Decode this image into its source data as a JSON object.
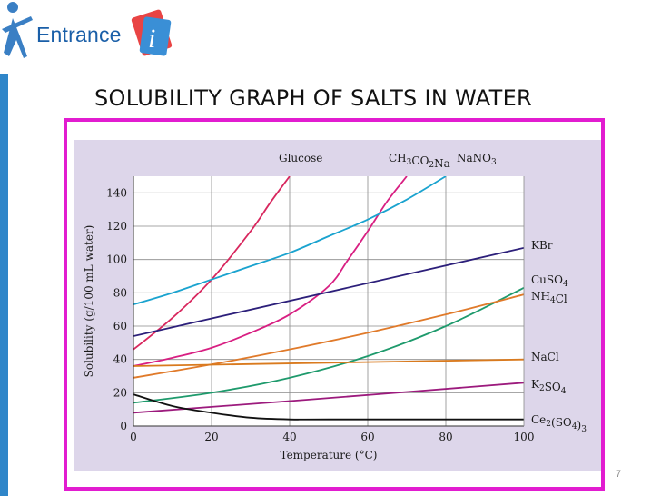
{
  "logo": {
    "text": "Entrance"
  },
  "slide": {
    "title": "SOLUBILITY GRAPH OF SALTS IN WATER",
    "number": "7"
  },
  "colors": {
    "frame_border": "#e21cd0",
    "chart_bg": "#ddd6ea",
    "left_bar": "#2f86c9"
  },
  "chart_data": {
    "type": "line",
    "xlabel": "Temperature (°C)",
    "ylabel": "Solubility (g/100 mL water)",
    "xlim": [
      0,
      100
    ],
    "ylim": [
      0,
      150
    ],
    "xticks": [
      0,
      20,
      40,
      60,
      80,
      100
    ],
    "yticks": [
      0,
      20,
      40,
      60,
      80,
      100,
      120,
      140
    ],
    "grid": true,
    "series": [
      {
        "id": "glucose",
        "name": "Glucose",
        "color": "#d8275e",
        "label_pos": "top",
        "points": [
          [
            0,
            46
          ],
          [
            10,
            65
          ],
          [
            20,
            88
          ],
          [
            30,
            117
          ],
          [
            35,
            134
          ],
          [
            40,
            150
          ]
        ]
      },
      {
        "id": "ch3co2na",
        "name": "CH3CO2Na",
        "color": "#d81f82",
        "label_pos": "top",
        "points": [
          [
            0,
            36
          ],
          [
            10,
            41
          ],
          [
            20,
            47
          ],
          [
            30,
            56
          ],
          [
            40,
            67
          ],
          [
            50,
            84
          ],
          [
            55,
            100
          ],
          [
            60,
            117
          ],
          [
            65,
            135
          ],
          [
            70,
            150
          ]
        ]
      },
      {
        "id": "nano3",
        "name": "NaNO3",
        "color": "#1aa3cf",
        "label_pos": "top",
        "points": [
          [
            0,
            73
          ],
          [
            10,
            80
          ],
          [
            20,
            88
          ],
          [
            30,
            96
          ],
          [
            40,
            104
          ],
          [
            50,
            114
          ],
          [
            60,
            124
          ],
          [
            70,
            136
          ],
          [
            80,
            150
          ]
        ]
      },
      {
        "id": "kbr",
        "name": "KBr",
        "color": "#2c1f7a",
        "label_pos": "right",
        "points": [
          [
            0,
            54
          ],
          [
            100,
            107
          ]
        ]
      },
      {
        "id": "cuso4",
        "name": "CuSO4",
        "color": "#1e9a6c",
        "label_pos": "right",
        "points": [
          [
            0,
            14
          ],
          [
            20,
            20
          ],
          [
            40,
            29
          ],
          [
            60,
            42
          ],
          [
            80,
            60
          ],
          [
            100,
            83
          ]
        ]
      },
      {
        "id": "nh4cl",
        "name": "NH4Cl",
        "color": "#e07a2a",
        "label_pos": "right",
        "points": [
          [
            0,
            29
          ],
          [
            20,
            37
          ],
          [
            40,
            46
          ],
          [
            60,
            56
          ],
          [
            80,
            67
          ],
          [
            100,
            79
          ]
        ]
      },
      {
        "id": "nacl",
        "name": "NaCl",
        "color": "#d97a1e",
        "label_pos": "right",
        "points": [
          [
            0,
            36
          ],
          [
            50,
            38
          ],
          [
            100,
            40
          ]
        ]
      },
      {
        "id": "k2so4",
        "name": "K2SO4",
        "color": "#9c1a7d",
        "label_pos": "right",
        "points": [
          [
            0,
            8
          ],
          [
            40,
            15
          ],
          [
            100,
            26
          ]
        ]
      },
      {
        "id": "ce2so43",
        "name": "Ce2(SO4)3",
        "color": "#111111",
        "label_pos": "right",
        "points": [
          [
            0,
            19
          ],
          [
            10,
            12
          ],
          [
            20,
            8
          ],
          [
            30,
            5
          ],
          [
            40,
            4
          ],
          [
            50,
            4
          ],
          [
            100,
            4
          ]
        ]
      }
    ]
  }
}
